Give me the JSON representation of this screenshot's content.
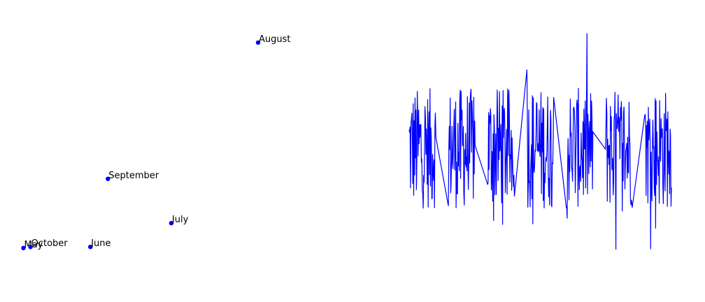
{
  "colors": {
    "series": "#0000ff",
    "label": "#000000",
    "background": "#ffffff"
  },
  "chart_data": [
    {
      "type": "scatter",
      "axes": "hidden",
      "grid": false,
      "points": [
        {
          "label": "May",
          "x": 0.0,
          "y": 0.0
        },
        {
          "label": "October",
          "x": 0.03,
          "y": 0.005
        },
        {
          "label": "June",
          "x": 0.285,
          "y": 0.005
        },
        {
          "label": "July",
          "x": 0.63,
          "y": 0.115
        },
        {
          "label": "September",
          "x": 0.36,
          "y": 0.32
        },
        {
          "label": "August",
          "x": 1.0,
          "y": 0.95
        }
      ],
      "xlim": [
        -0.1,
        1.45
      ],
      "ylim": [
        -0.13,
        1.05
      ]
    },
    {
      "type": "line",
      "axes": "hidden",
      "grid": false,
      "segments": 7,
      "points_per_segment": 60,
      "segment_gap_fraction": 0.32,
      "baseline": 0.55,
      "amplitude": 0.7,
      "xlim": [
        0,
        1
      ],
      "ylim": [
        -0.6,
        1.9
      ]
    }
  ]
}
